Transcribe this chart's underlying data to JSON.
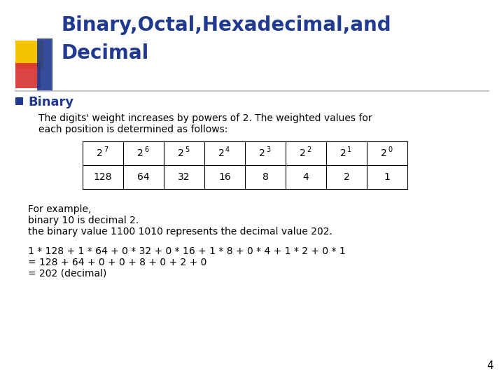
{
  "title_line1": "Binary,Octal,Hexadecimal,and",
  "title_line2": "Decimal",
  "title_color": "#1F3A8F",
  "section_bullet": "Binary",
  "bullet_color": "#1F3A8F",
  "bullet_square_color": "#1F3A8F",
  "body_text1": "The digits' weight increases by powers of 2. The weighted values for",
  "body_text2": "each position is determined as follows:",
  "table_headers": [
    "27",
    "26",
    "25",
    "24",
    "23",
    "22",
    "21",
    "20"
  ],
  "table_superscripts": [
    "7",
    "6",
    "5",
    "4",
    "3",
    "2",
    "1",
    "0"
  ],
  "table_values": [
    "128",
    "64",
    "32",
    "16",
    "8",
    "4",
    "2",
    "1"
  ],
  "example_line1": "For example,",
  "example_line2": "binary 10 is decimal 2.",
  "example_line3": "the binary value 1100 1010 represents the decimal value 202.",
  "calc_line1": "1 * 128 + 1 * 64 + 0 * 32 + 0 * 16 + 1 * 8 + 0 * 4 + 1 * 2 + 0 * 1",
  "calc_line2": "= 128 + 64 + 0 + 0 + 8 + 0 + 2 + 0",
  "calc_line3": "= 202 (decimal)",
  "page_number": "4",
  "bg_color": "#FFFFFF",
  "text_color": "#000000",
  "title_font": "DejaVu Sans",
  "body_font": "DejaVu Sans",
  "mono_font": "DejaVu Sans Mono",
  "deco_gold": "#F5C400",
  "deco_red": "#D93030",
  "deco_blue": "#1F3A8F",
  "rule_color": "#BBBBBB"
}
